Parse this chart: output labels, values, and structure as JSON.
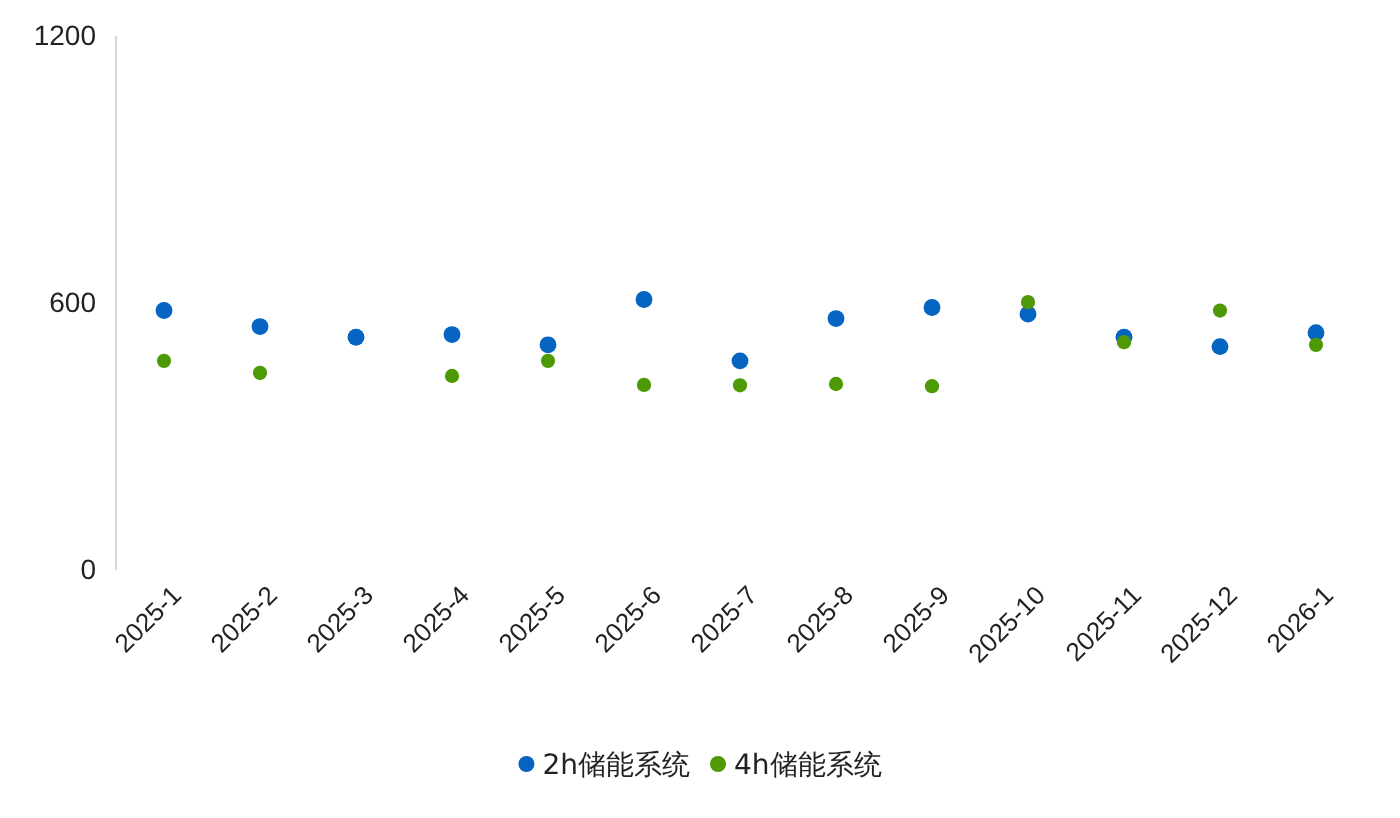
{
  "chart_data": {
    "type": "scatter",
    "categories": [
      "2025-1",
      "2025-2",
      "2025-3",
      "2025-4",
      "2025-5",
      "2025-6",
      "2025-7",
      "2025-8",
      "2025-9",
      "2025-10",
      "2025-11",
      "2025-12",
      "2026-1"
    ],
    "series": [
      {
        "name": "2h储能系统",
        "color": "#0563c1",
        "values": [
          583,
          547,
          523,
          529,
          506,
          608,
          470,
          565,
          590,
          575,
          523,
          502,
          533
        ]
      },
      {
        "name": "4h储能系统",
        "color": "#4e9a06",
        "values": [
          470,
          443,
          null,
          436,
          470,
          416,
          415,
          418,
          413,
          602,
          512,
          583,
          506
        ]
      }
    ],
    "ylim": [
      0,
      1200
    ],
    "yticks": [
      0,
      600,
      1200
    ],
    "grid": false,
    "legend": "bottom",
    "marker": "circle"
  }
}
